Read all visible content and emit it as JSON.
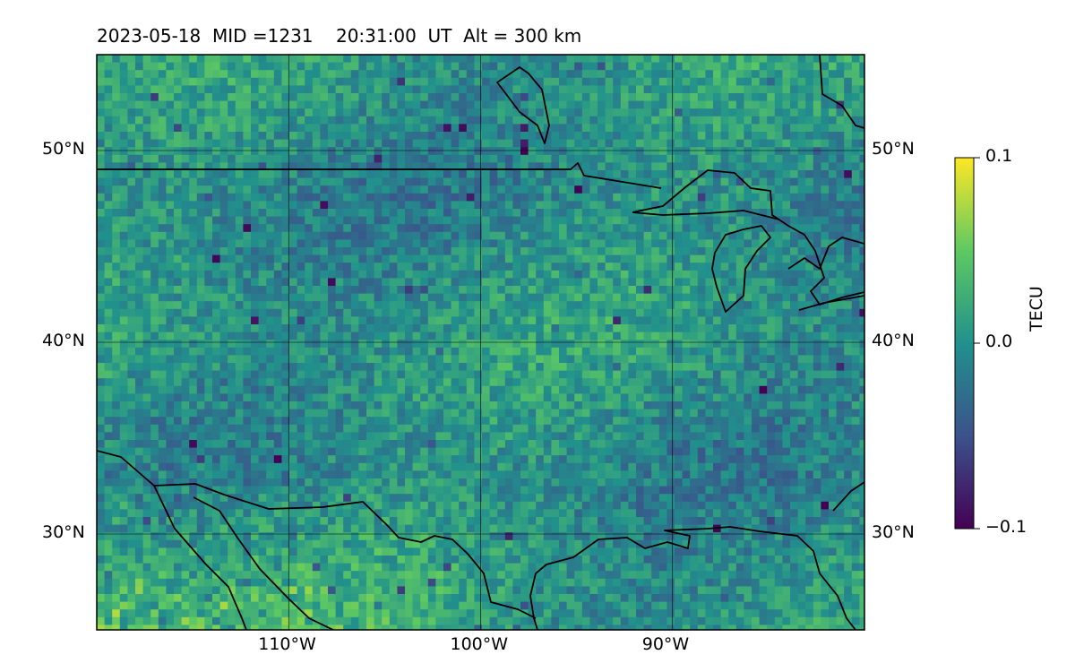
{
  "title": {
    "date": "2023-05-18",
    "mid_label": "MID =1231",
    "time": "20:31:00",
    "time_unit": "UT",
    "alt_label": "Alt = 300 km"
  },
  "map": {
    "lon_range": [
      -120,
      -80
    ],
    "lat_range": [
      25,
      55
    ],
    "lon_ticks": [
      {
        "value": -110,
        "label": "110°W"
      },
      {
        "value": -100,
        "label": "100°W"
      },
      {
        "value": -90,
        "label": "90°W"
      }
    ],
    "lat_ticks": [
      {
        "value": 30,
        "label": "30°N"
      },
      {
        "value": 40,
        "label": "40°N"
      },
      {
        "value": 50,
        "label": "50°N"
      }
    ],
    "gridlines": true
  },
  "colorbar": {
    "label": "TECU",
    "colormap": "viridis",
    "min": -0.1,
    "max": 0.1,
    "ticks": [
      {
        "value": 0.1,
        "label": "0.1"
      },
      {
        "value": 0.0,
        "label": "0.0"
      },
      {
        "value": -0.1,
        "label": "−0.1"
      }
    ]
  },
  "colors": {
    "viridis": [
      "#440154",
      "#3b528b",
      "#21918c",
      "#5ec962",
      "#fde725"
    ],
    "coastline": "#000000",
    "grid": "#000000"
  }
}
